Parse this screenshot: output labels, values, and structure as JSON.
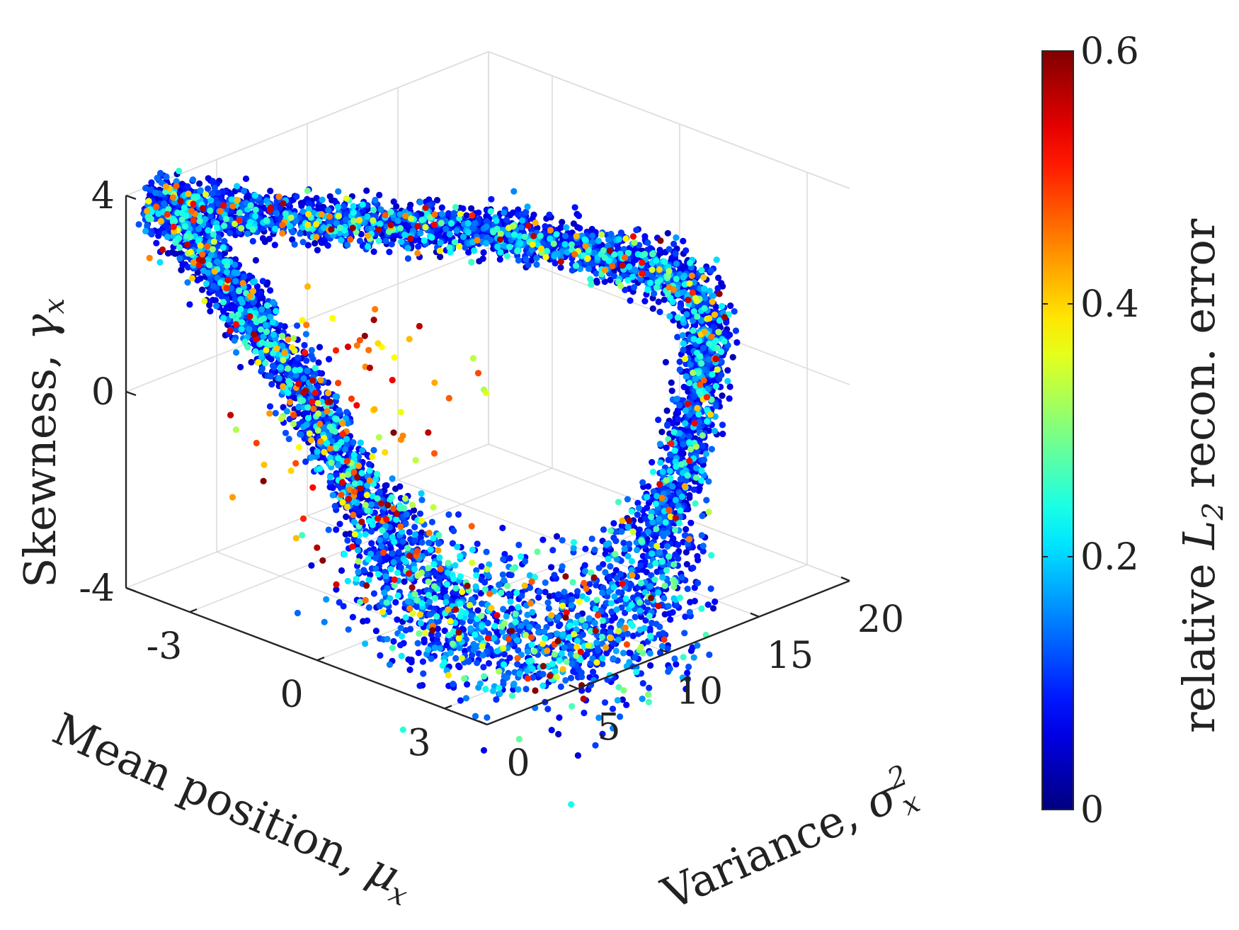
{
  "chart_data": {
    "type": "scatter",
    "title": "",
    "axes": {
      "x": {
        "label": "Mean position, ",
        "symbol": "μ",
        "subscript": "x",
        "ticks": [
          "-3",
          "0",
          "3"
        ],
        "tick_values": [
          -3,
          0,
          3
        ],
        "range": [
          -4.5,
          4
        ]
      },
      "y": {
        "label": "Variance, ",
        "symbol": "σ",
        "superscript": "2",
        "subscript": "x",
        "ticks": [
          "0",
          "5",
          "10",
          "15",
          "20"
        ],
        "tick_values": [
          0,
          5,
          10,
          15,
          20
        ],
        "range": [
          0,
          20
        ]
      },
      "z": {
        "label": "Skewness, ",
        "symbol": "γ",
        "subscript": "x",
        "ticks": [
          "4",
          "0",
          "-4"
        ],
        "tick_values": [
          4,
          0,
          -4
        ],
        "range": [
          -4,
          4
        ]
      }
    },
    "colorbar": {
      "label": "relative ",
      "label_symbol": "L",
      "label_subscript": "2",
      "label_suffix": " recon. error",
      "ticks": [
        "0",
        "0.2",
        "0.4",
        "0.6"
      ],
      "tick_values": [
        0,
        0.2,
        0.4,
        0.6
      ],
      "range": [
        0,
        0.6
      ],
      "colormap": "jet"
    },
    "grid": true,
    "series_description_values": {
      "n_points": 6500,
      "curve_waypoints_mu_sigma2_gamma": [
        [
          -4.0,
          0.5,
          4.0
        ],
        [
          -3.2,
          2.0,
          2.6
        ],
        [
          -2.2,
          3.5,
          0.8
        ],
        [
          -0.8,
          4.5,
          -1.6
        ],
        [
          1.0,
          4.5,
          -3.3
        ],
        [
          2.6,
          6.0,
          -3.9
        ],
        [
          3.4,
          9.0,
          -3.3
        ],
        [
          3.0,
          13.0,
          -1.2
        ],
        [
          2.0,
          17.0,
          0.6
        ],
        [
          0.5,
          19.0,
          1.2
        ],
        [
          -1.5,
          14.0,
          2.2
        ],
        [
          -3.0,
          6.0,
          3.1
        ],
        [
          -4.0,
          0.5,
          4.0
        ]
      ]
    }
  }
}
